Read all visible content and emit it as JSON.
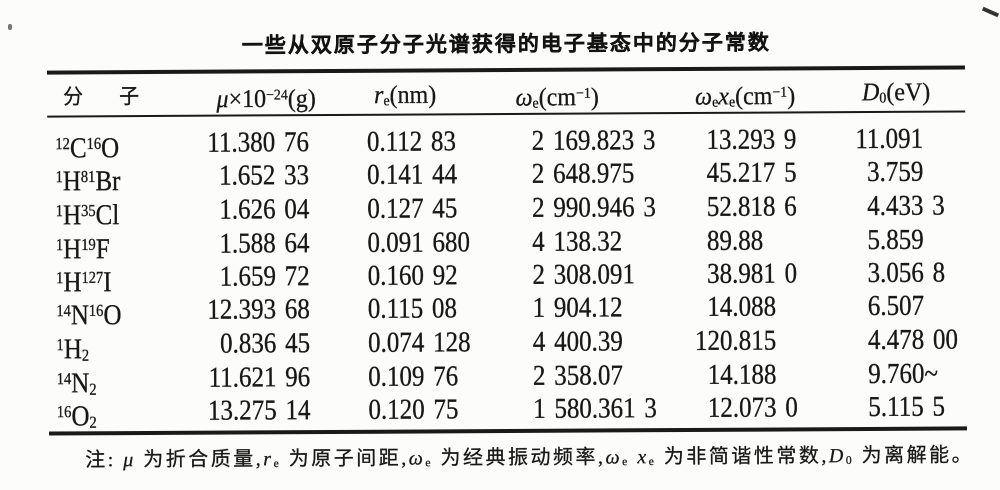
{
  "title": "一些从双原子分子光谱获得的电子基态中的分子常数",
  "table": {
    "headers": {
      "molecule": "分　子",
      "mu": [
        {
          "i": "μ"
        },
        {
          "t": "×10"
        },
        {
          "sup": "−24"
        },
        {
          "t": "(g)"
        }
      ],
      "re": [
        {
          "i": "r"
        },
        {
          "sub": "e"
        },
        {
          "t": "(nm)"
        }
      ],
      "omega": [
        {
          "i": "ω"
        },
        {
          "sub": "e"
        },
        {
          "t": "(cm"
        },
        {
          "sup": "−1"
        },
        {
          "t": ")"
        }
      ],
      "omegax": [
        {
          "i": "ω"
        },
        {
          "sub": "e"
        },
        {
          "i": "x"
        },
        {
          "sub": "e"
        },
        {
          "t": "(cm"
        },
        {
          "sup": "−1"
        },
        {
          "t": ")"
        }
      ],
      "d0": [
        {
          "i": "D"
        },
        {
          "sub": "0"
        },
        {
          "t": "(eV)"
        }
      ]
    },
    "rows": [
      {
        "formula": [
          {
            "sup": "12"
          },
          {
            "t": "C"
          },
          {
            "sup": "16"
          },
          {
            "t": "O"
          }
        ],
        "mu": "11.380 76",
        "re": "0.112 83",
        "omega": "2 169.823 3",
        "omegax": "13.293 9",
        "d0": "11.091"
      },
      {
        "formula": [
          {
            "sup": "1"
          },
          {
            "t": "H"
          },
          {
            "sup": "81"
          },
          {
            "t": "Br"
          }
        ],
        "mu": "1.652 33",
        "re": "0.141 44",
        "omega": "2 648.975",
        "omegax": "45.217 5",
        "d0": "3.759"
      },
      {
        "formula": [
          {
            "sup": "1"
          },
          {
            "t": "H"
          },
          {
            "sup": "35"
          },
          {
            "t": "Cl"
          }
        ],
        "mu": "1.626 04",
        "re": "0.127 45",
        "omega": "2 990.946 3",
        "omegax": "52.818 6",
        "d0": "4.433 3"
      },
      {
        "formula": [
          {
            "sup": "1"
          },
          {
            "t": "H"
          },
          {
            "sup": "19"
          },
          {
            "t": "F"
          }
        ],
        "mu": "1.588 64",
        "re": "0.091 680",
        "omega": "4 138.32",
        "omegax": "89.88",
        "d0": "5.859"
      },
      {
        "formula": [
          {
            "sup": "1"
          },
          {
            "t": "H"
          },
          {
            "sup": "127"
          },
          {
            "t": "I"
          }
        ],
        "mu": "1.659 72",
        "re": "0.160 92",
        "omega": "2 308.091",
        "omegax": "38.981 0",
        "d0": "3.056 8"
      },
      {
        "formula": [
          {
            "sup": "14"
          },
          {
            "t": "N"
          },
          {
            "sup": "16"
          },
          {
            "t": "O"
          }
        ],
        "mu": "12.393 68",
        "re": "0.115 08",
        "omega": "1 904.12",
        "omegax": "14.088",
        "d0": "6.507"
      },
      {
        "formula": [
          {
            "sup": "1"
          },
          {
            "t": "H"
          },
          {
            "sub": "2"
          }
        ],
        "mu": "0.836 45",
        "re": "0.074 128",
        "omega": "4 400.39",
        "omegax": "120.815",
        "d0": "4.478 00"
      },
      {
        "formula": [
          {
            "sup": "14"
          },
          {
            "t": "N"
          },
          {
            "sub": "2"
          }
        ],
        "mu": "11.621 96",
        "re": "0.109 76",
        "omega": "2 358.07",
        "omegax": "14.188",
        "d0": "9.760~"
      },
      {
        "formula": [
          {
            "sup": "16"
          },
          {
            "t": "O"
          },
          {
            "sub": "2"
          }
        ],
        "mu": "13.275 14",
        "re": "0.120 75",
        "omega": "1 580.361 3",
        "omegax": "12.073 0",
        "d0": "5.115 5"
      }
    ]
  },
  "note": [
    {
      "t": "注: "
    },
    {
      "i": "μ"
    },
    {
      "t": " 为折合质量,"
    },
    {
      "i": "r"
    },
    {
      "sub": "e"
    },
    {
      "t": " 为原子间距,"
    },
    {
      "i": "ω"
    },
    {
      "sub": "e"
    },
    {
      "t": " 为经典振动频率,"
    },
    {
      "i": "ω"
    },
    {
      "sub": "e"
    },
    {
      "t": " "
    },
    {
      "i": "x"
    },
    {
      "sub": "e"
    },
    {
      "t": " 为非简谐性常数,"
    },
    {
      "i": "D"
    },
    {
      "sub": "0"
    },
    {
      "t": " 为离解能。"
    }
  ]
}
